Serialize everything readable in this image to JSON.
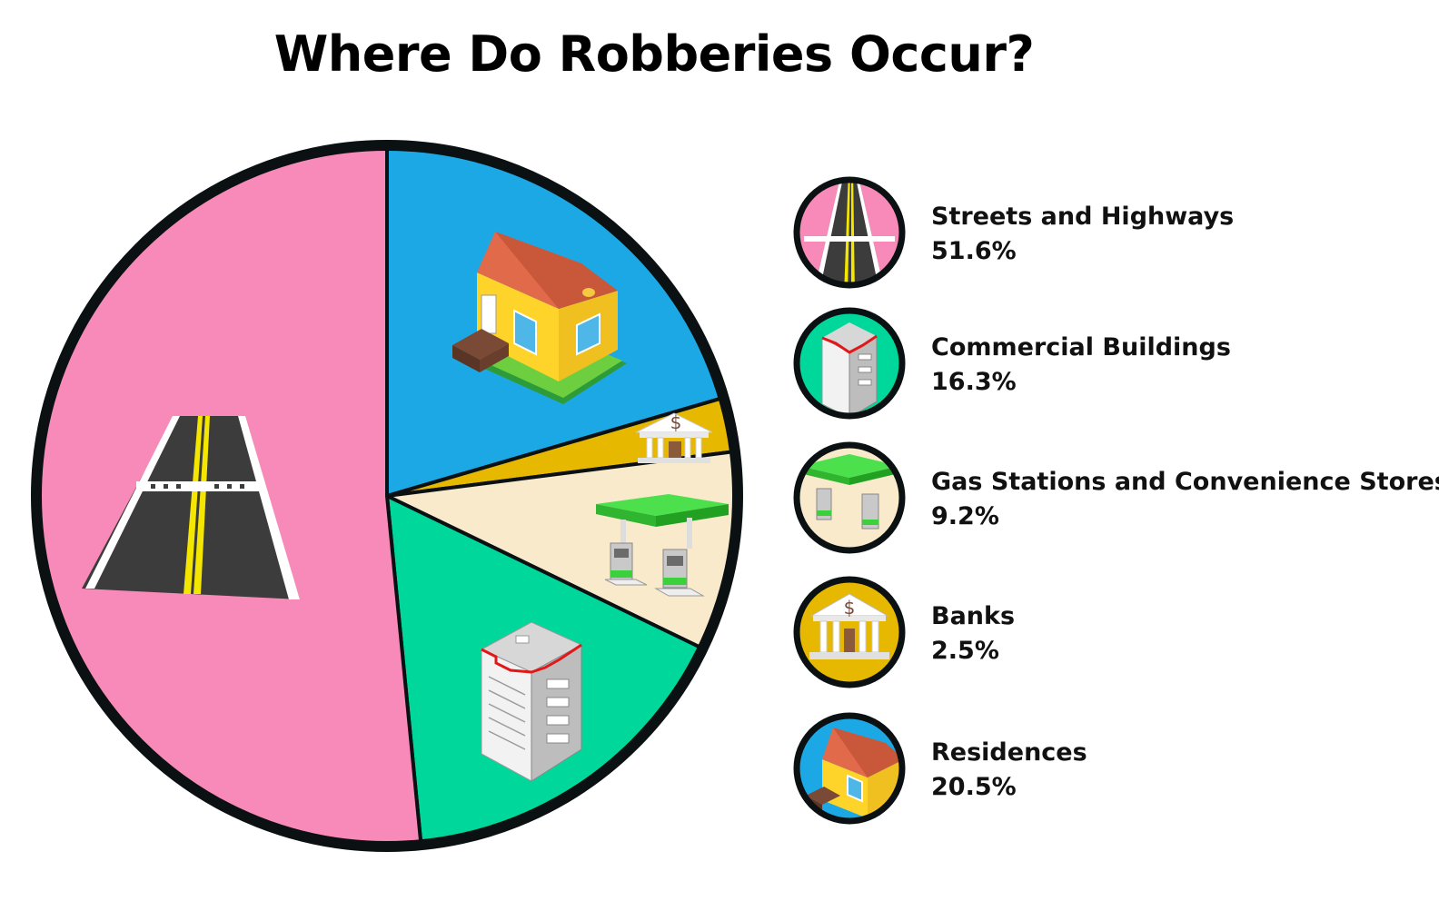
{
  "chart_data": {
    "type": "pie",
    "title": "Where Do Robberies Occur?",
    "unit": "%",
    "slices": [
      {
        "label": "Streets and Highways",
        "value": 51.6,
        "value_label": "51.6%",
        "color": "#f78ab8",
        "icon": "road-icon"
      },
      {
        "label": "Commercial Buildings",
        "value": 16.3,
        "value_label": "16.3%",
        "color": "#00d89b",
        "icon": "office-building-icon"
      },
      {
        "label": "Gas Stations and Convenience Stores",
        "value": 9.2,
        "value_label": "9.2%",
        "color": "#f9eacb",
        "icon": "gas-station-icon"
      },
      {
        "label": "Banks",
        "value": 2.5,
        "value_label": "2.5%",
        "color": "#e6b800",
        "icon": "bank-icon"
      },
      {
        "label": "Residences",
        "value": 20.5,
        "value_label": "20.5%",
        "color": "#1ba8e4",
        "icon": "house-icon"
      }
    ],
    "legend_position": "right",
    "outline_color": "#0b1012"
  }
}
